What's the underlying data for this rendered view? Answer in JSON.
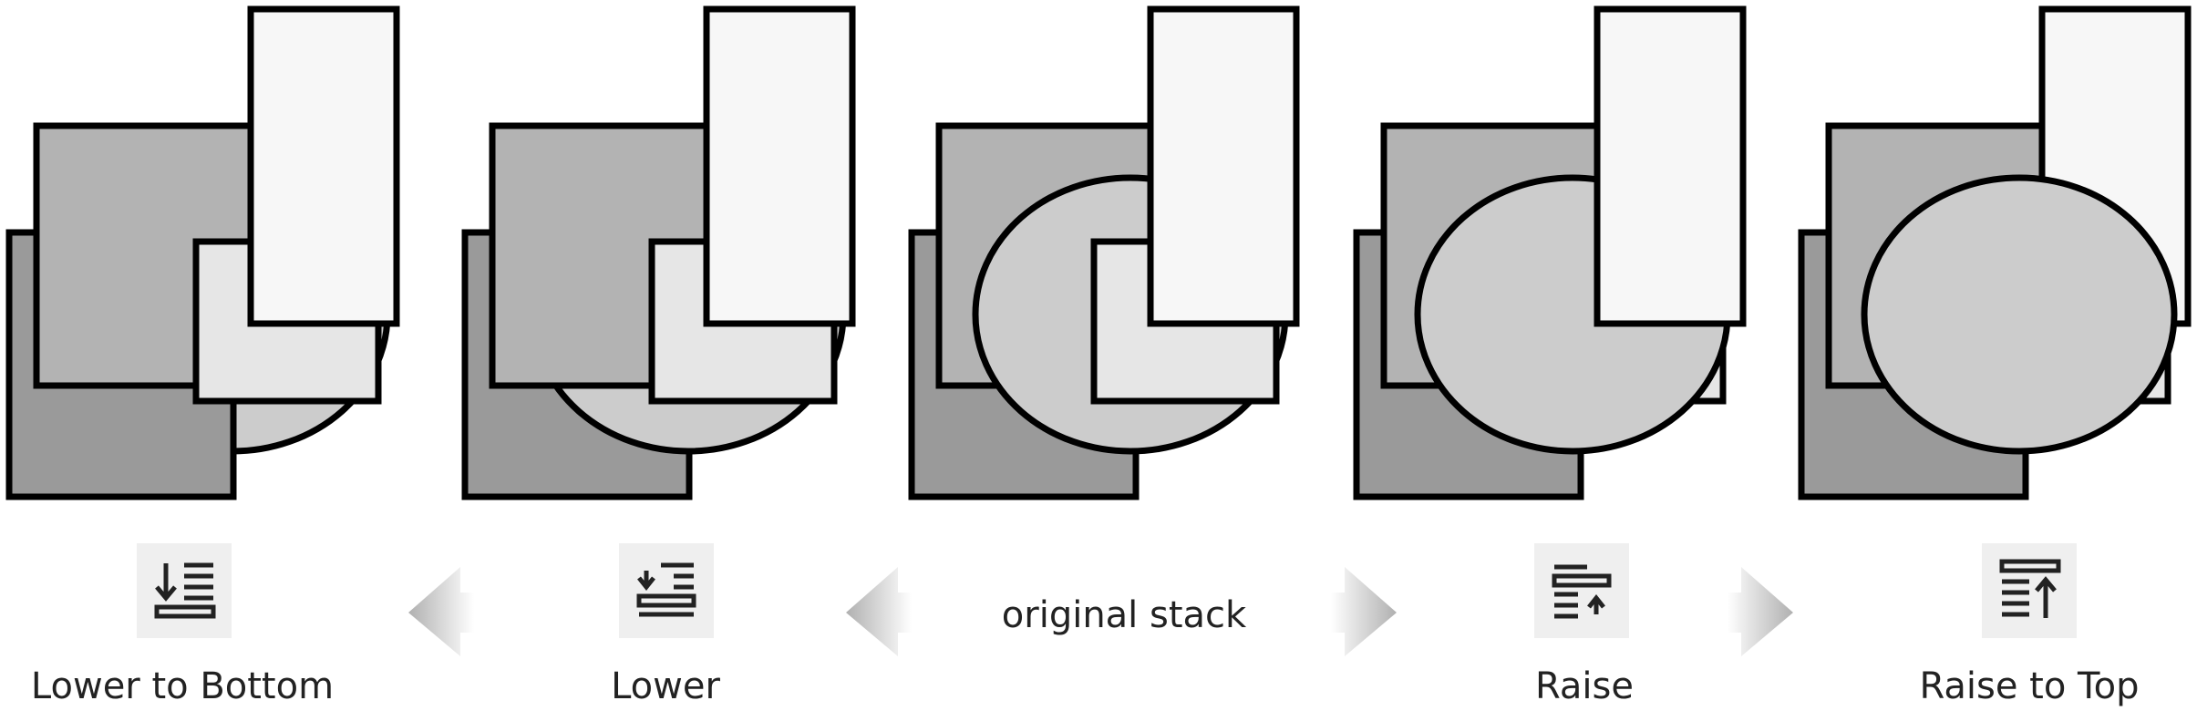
{
  "panels": [
    {
      "id": "lower-to-bottom",
      "label": "Lower to Bottom",
      "icon": "lower-to-bottom-icon"
    },
    {
      "id": "lower",
      "label": "Lower",
      "icon": "lower-icon"
    },
    {
      "id": "original",
      "label": "original stack",
      "icon": ""
    },
    {
      "id": "raise",
      "label": "Raise",
      "icon": "raise-icon"
    },
    {
      "id": "raise-to-top",
      "label": "Raise to Top",
      "icon": "raise-to-top-icon"
    }
  ],
  "colors": {
    "bottom_square": "#9a9a9a",
    "middle_square": "#b3b3b3",
    "ellipse": "#cccccc",
    "small_square": "#e6e6e6",
    "tall_rect": "#f7f7f7",
    "outline": "#000000",
    "arrow": "#bdbdbd",
    "icon_bg": "#efefef"
  }
}
